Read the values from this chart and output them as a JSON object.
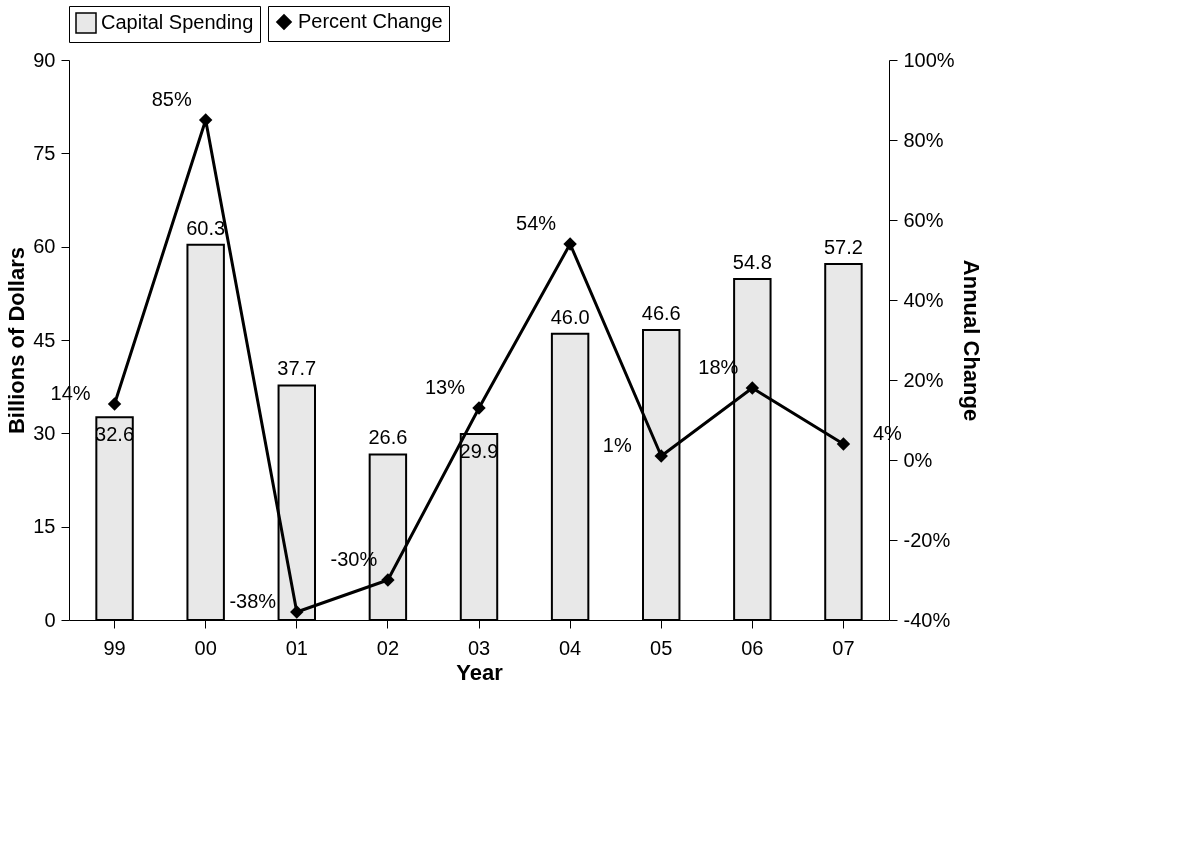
{
  "chart_data": {
    "type": "bar",
    "categories": [
      "99",
      "00",
      "01",
      "02",
      "03",
      "04",
      "05",
      "06",
      "07"
    ],
    "series": [
      {
        "name": "Capital Spending",
        "color": "#e8e8e8",
        "values": [
          32.6,
          60.3,
          37.7,
          26.6,
          29.9,
          46.0,
          46.6,
          54.8,
          57.2
        ],
        "value_labels": [
          "32.6",
          "60.3",
          "37.7",
          "26.6",
          "29.9",
          "46.0",
          "46.6",
          "54.8",
          "57.2"
        ]
      },
      {
        "name": "Percent Change",
        "type": "line",
        "axis": "y2",
        "color": "#000000",
        "marker": "diamond",
        "values": [
          14,
          85,
          -38,
          -30,
          13,
          54,
          1,
          18,
          4
        ],
        "value_labels": [
          "14%",
          "85%",
          "-38%",
          "-30%",
          "13%",
          "54%",
          "1%",
          "18%",
          "4%"
        ]
      }
    ],
    "xlabel": "Year",
    "ylabel": "Billions of Dollars",
    "y2label": "Annual Change",
    "ylim": [
      0,
      90
    ],
    "yticks": [
      0,
      15,
      30,
      45,
      60,
      75,
      90
    ],
    "y2lim": [
      -40,
      100
    ],
    "y2ticks": [
      {
        "value": -40,
        "label": "-40%"
      },
      {
        "value": -20,
        "label": "-20%"
      },
      {
        "value": 0,
        "label": "0%"
      },
      {
        "value": 20,
        "label": "20%"
      },
      {
        "value": 40,
        "label": "40%"
      },
      {
        "value": 60,
        "label": "60%"
      },
      {
        "value": 80,
        "label": "80%"
      },
      {
        "value": 100,
        "label": "100%"
      }
    ],
    "legend": "top",
    "grid": false
  }
}
